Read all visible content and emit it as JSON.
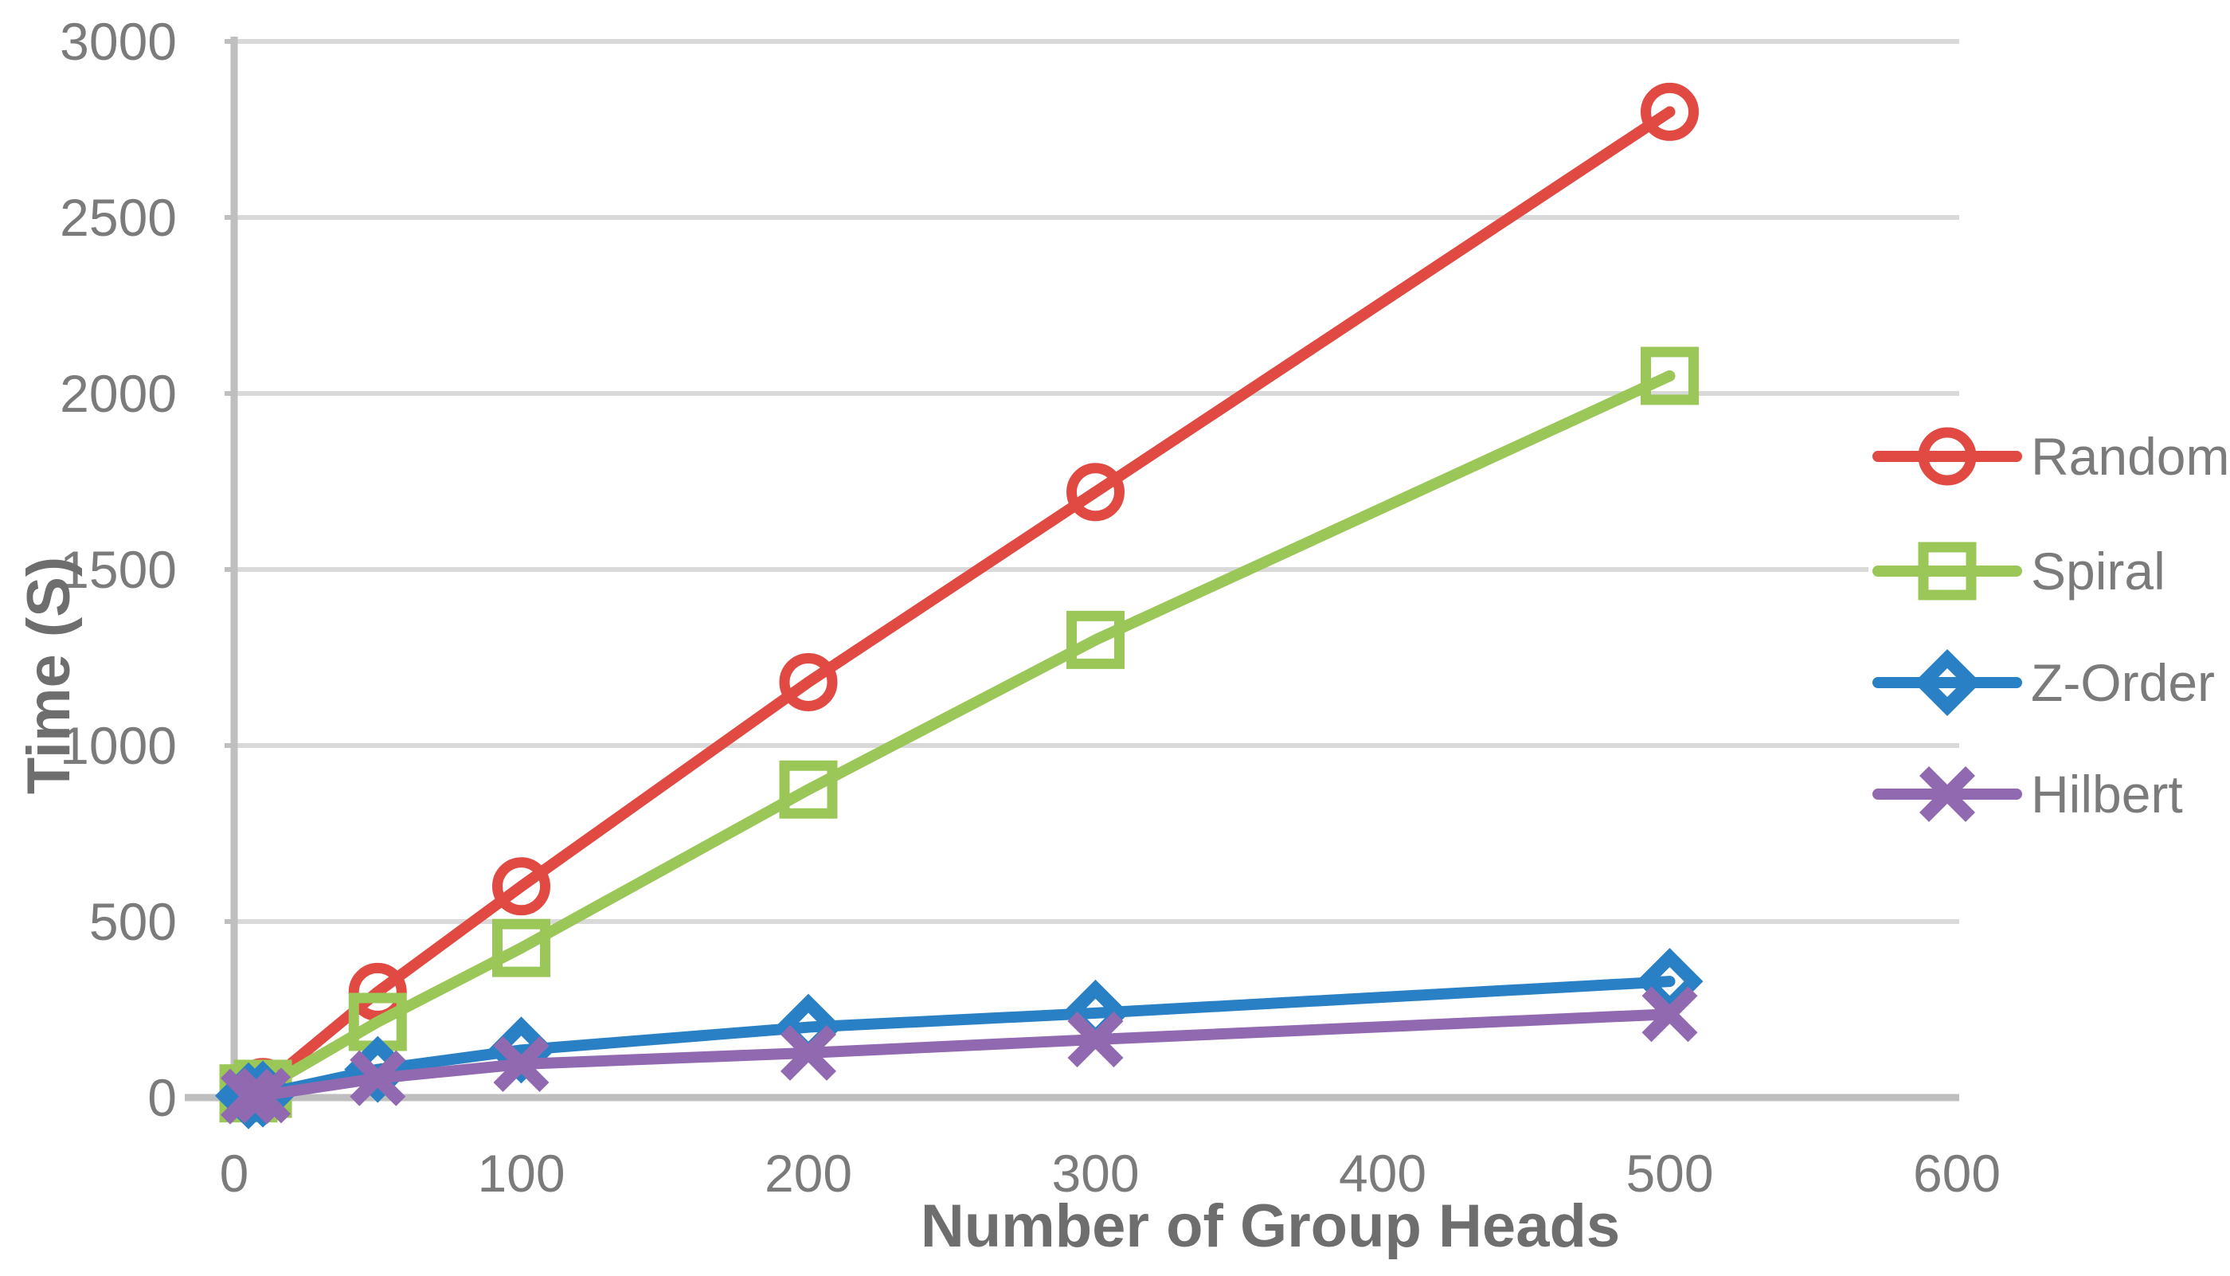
{
  "chart_data": {
    "type": "line",
    "title": "",
    "xlabel": "Number of Group Heads",
    "ylabel": "Time (S)",
    "x": [
      5,
      10,
      50,
      100,
      200,
      300,
      500
    ],
    "series": [
      {
        "name": "Random",
        "color": "#E04A42",
        "marker": "open-circle",
        "values": [
          15,
          30,
          300,
          600,
          1180,
          1720,
          2800
        ]
      },
      {
        "name": "Spiral",
        "color": "#9BC658",
        "marker": "open-square",
        "values": [
          12,
          25,
          215,
          425,
          875,
          1300,
          2050
        ]
      },
      {
        "name": "Z-Order",
        "color": "#2A80C4",
        "marker": "open-diamond",
        "values": [
          5,
          10,
          80,
          135,
          200,
          240,
          330
        ]
      },
      {
        "name": "Hilbert",
        "color": "#9069B0",
        "marker": "x-cross",
        "values": [
          3,
          6,
          55,
          95,
          127,
          165,
          237
        ]
      }
    ],
    "x_ticks": [
      0,
      100,
      200,
      300,
      400,
      500,
      600
    ],
    "y_ticks": [
      0,
      500,
      1000,
      1500,
      2000,
      2500,
      3000
    ],
    "xlim": [
      0,
      600
    ],
    "ylim": [
      0,
      3000
    ],
    "grid": "horizontal",
    "legend_position": "right",
    "colors": {
      "background": "#FFFFFF",
      "gridline": "#D9D9D9",
      "axis_line": "#BFBFBF",
      "tick_label": "#7B7B7B",
      "axis_title": "#6E6E6E"
    }
  }
}
